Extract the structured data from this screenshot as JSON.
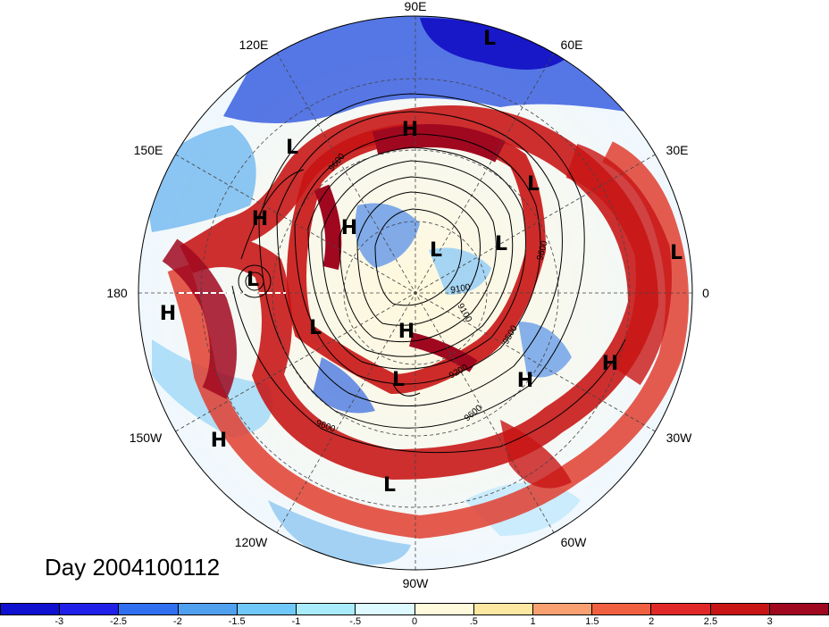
{
  "title": "Day 2004100112",
  "longitude_labels": {
    "lon_90E": "90E",
    "lon_60E": "60E",
    "lon_30E": "30E",
    "lon_0": "0",
    "lon_30W": "30W",
    "lon_60W": "60W",
    "lon_90W": "90W",
    "lon_120W": "120W",
    "lon_150W": "150W",
    "lon_180": "180",
    "lon_150E": "150E",
    "lon_120E": "120E"
  },
  "pressure_centers": [
    "L",
    "H",
    "L",
    "L",
    "H",
    "H",
    "L",
    "L",
    "L",
    "L",
    "L",
    "H",
    "H",
    "L",
    "H",
    "H",
    "L",
    "H"
  ],
  "contour_labels": [
    "9600",
    "9100",
    "9100",
    "9600",
    "9200",
    "9500",
    "9600",
    "9600"
  ],
  "colorbar": {
    "colors": [
      "#1010d0",
      "#2020e8",
      "#3070f0",
      "#50a0f0",
      "#70c8f8",
      "#a8ecfc",
      "#dcfaff",
      "#fffadc",
      "#fce8a0",
      "#f8a070",
      "#f06040",
      "#e02828",
      "#c81414",
      "#a00820"
    ],
    "ticks": [
      "-3",
      "-2.5",
      "-2",
      "-1.5",
      "-1",
      "-.5",
      "0",
      ".5",
      "1",
      "1.5",
      "2",
      "2.5",
      "3"
    ]
  }
}
